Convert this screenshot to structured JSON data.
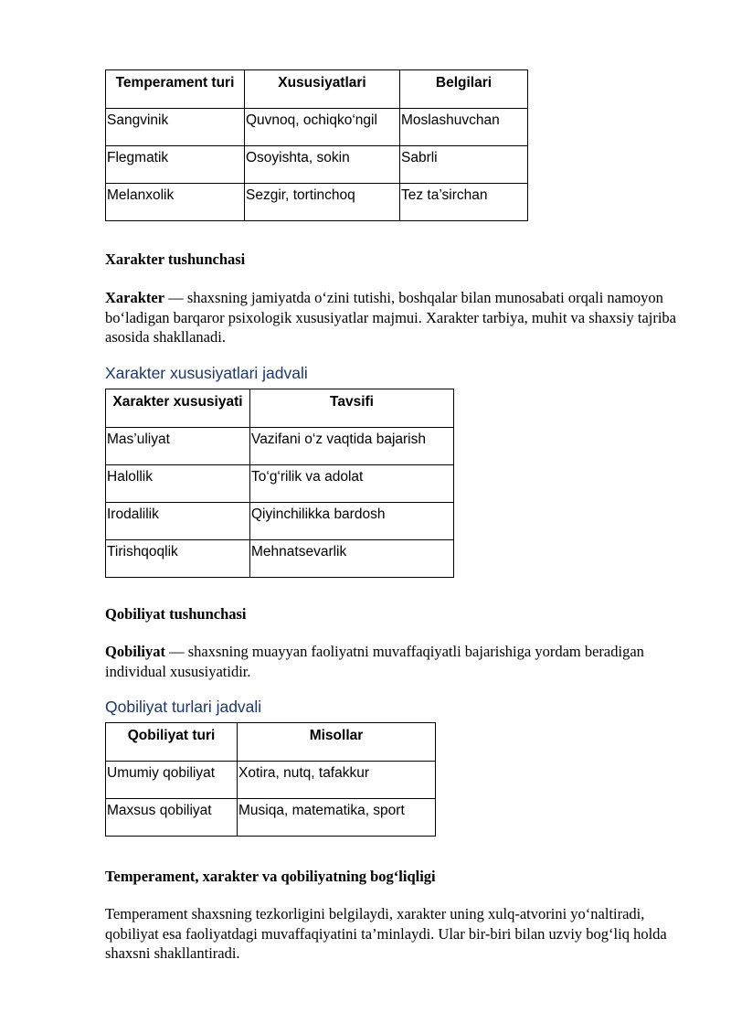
{
  "table1": {
    "headers": [
      "Temperament turi",
      "Xususiyatlari",
      "Belgilari"
    ],
    "rows": [
      [
        "Sangvinik",
        "Quvnoq, ochiqko‘ngil",
        "Moslashuvchan"
      ],
      [
        "Flegmatik",
        "Osoyishta, sokin",
        "Sabrli"
      ],
      [
        "Melanxolik",
        "Sezgir, tortinchoq",
        "Tez ta’sirchan"
      ]
    ]
  },
  "section1": {
    "heading": "Xarakter tushunchasi",
    "term": "Xarakter",
    "text": " — shaxsning jamiyatda o‘zini tutishi, boshqalar bilan munosabati orqali namoyon bo‘ladigan barqaror psixologik xususiyatlar majmui. Xarakter tarbiya, muhit va shaxsiy tajriba asosida shakllanadi."
  },
  "table2": {
    "caption": "Xarakter xususiyatlari jadvali",
    "headers": [
      "Xarakter xususiyati",
      "Tavsifi"
    ],
    "rows": [
      [
        "Mas’uliyat",
        "Vazifani o‘z vaqtida bajarish"
      ],
      [
        "Halollik",
        "To‘g‘rilik va adolat"
      ],
      [
        "Irodalilik",
        "Qiyinchilikka bardosh"
      ],
      [
        "Tirishqoqlik",
        "Mehnatsevarlik"
      ]
    ]
  },
  "section2": {
    "heading": "Qobiliyat tushunchasi",
    "term": "Qobiliyat",
    "text": " — shaxsning muayyan faoliyatni muvaffaqiyatli bajarishiga yordam beradigan individual xususiyatidir."
  },
  "table3": {
    "caption": "Qobiliyat turlari jadvali",
    "headers": [
      "Qobiliyat turi",
      "Misollar"
    ],
    "rows": [
      [
        "Umumiy qobiliyat",
        "Xotira, nutq, tafakkur"
      ],
      [
        "Maxsus qobiliyat",
        "Musiqa, matematika, sport"
      ]
    ]
  },
  "section3": {
    "heading": "Temperament, xarakter va qobiliyatning bog‘liqligi",
    "text": "Temperament shaxsning tezkorligini belgilaydi, xarakter uning xulq-atvorini yo‘naltiradi, qobiliyat esa faoliyatdagi muvaffaqiyatini ta’minlaydi. Ular bir-biri bilan uzviy bog‘liq holda shaxsni shakllantiradi."
  },
  "colors": {
    "caption": "#1f3864"
  }
}
